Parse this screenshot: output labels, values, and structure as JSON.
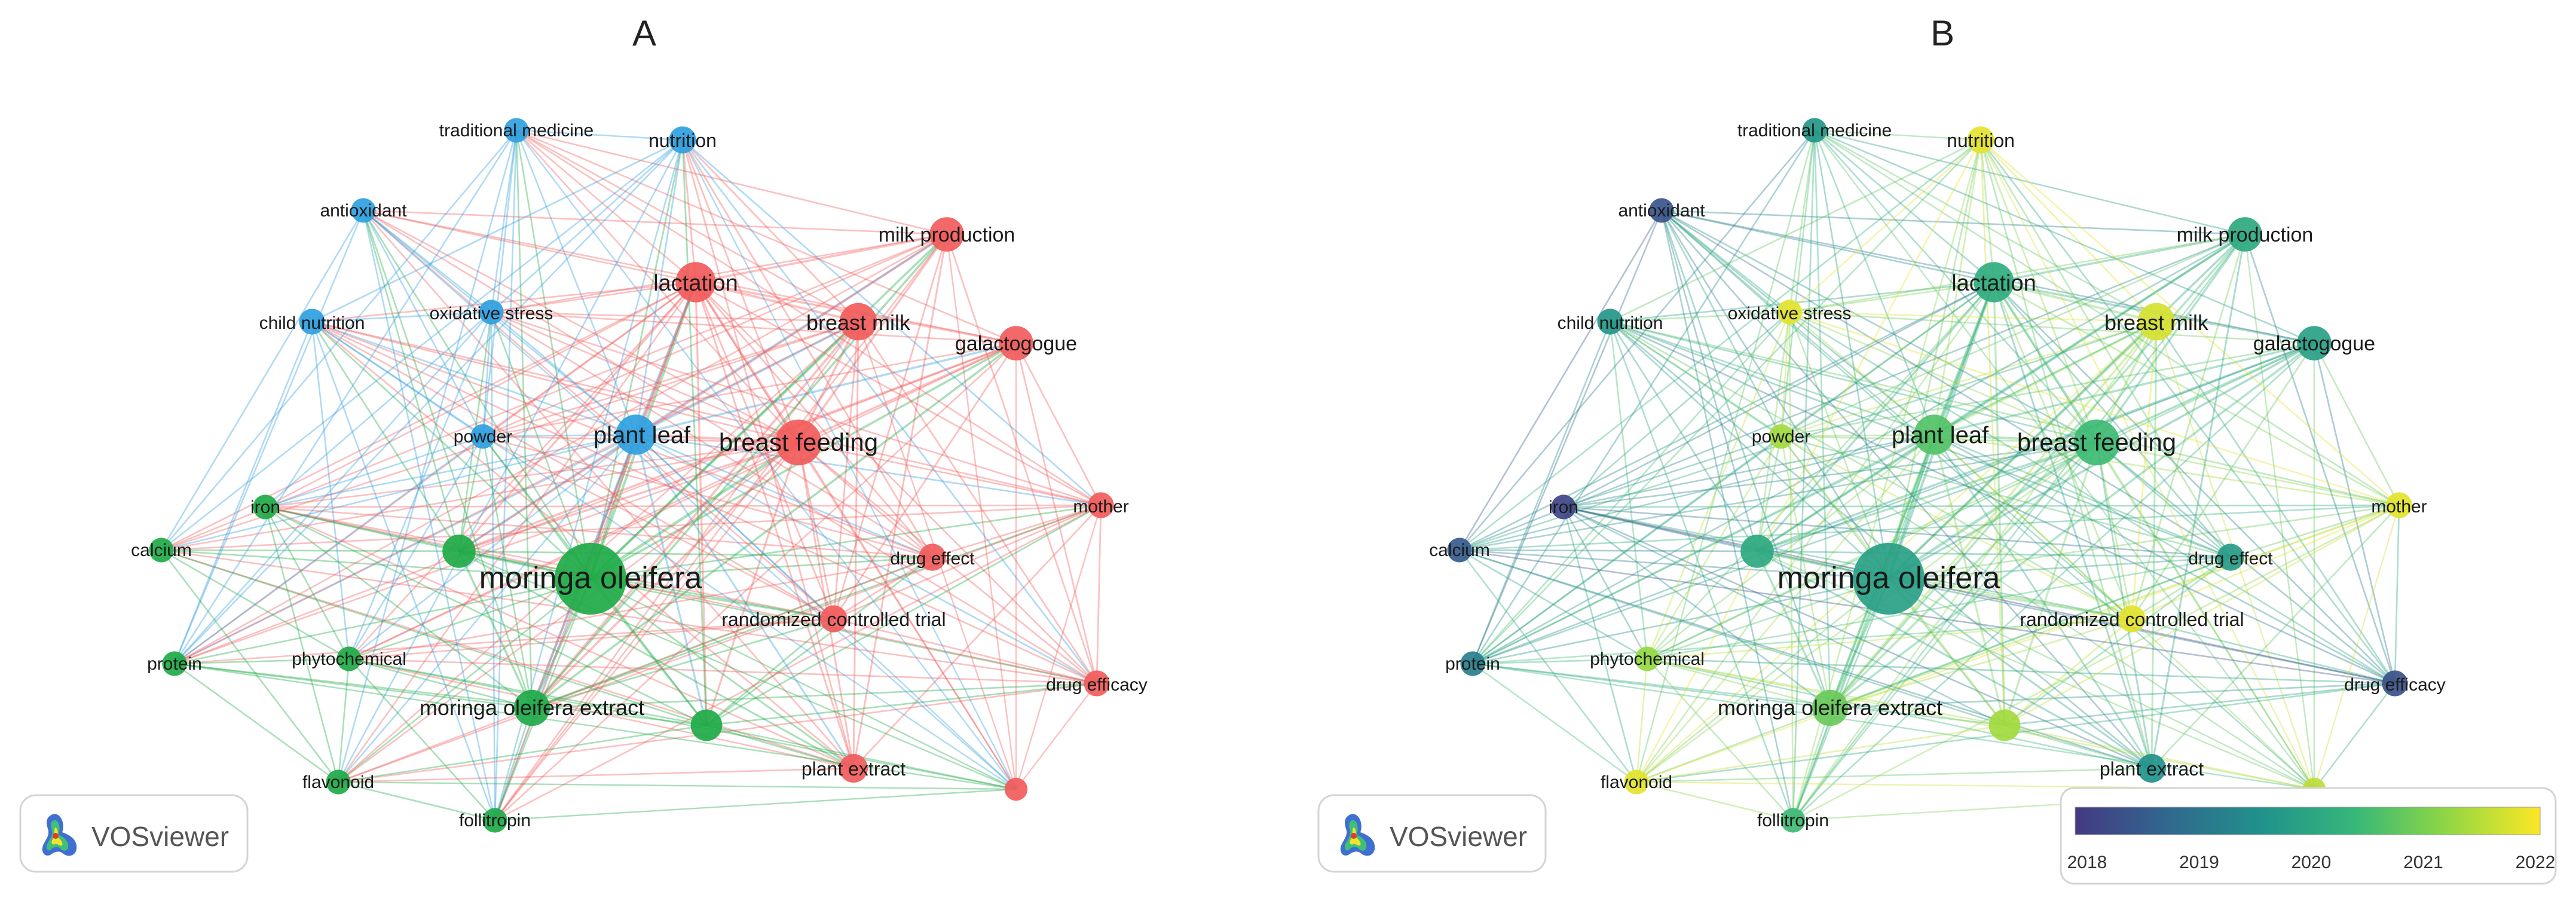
{
  "panels": [
    {
      "label": "A",
      "mode": "cluster",
      "logo_text": "VOSviewer"
    },
    {
      "label": "B",
      "mode": "overlay",
      "logo_text": "VOSviewer"
    }
  ],
  "clusters": {
    "red": "#f25b5b",
    "green": "#1faa48",
    "blue": "#2f9fe0"
  },
  "overlay_scale": {
    "ticks": [
      "2018",
      "2019",
      "2020",
      "2021",
      "2022"
    ],
    "colors": [
      "#443a83",
      "#31688e",
      "#21918c",
      "#35b779",
      "#90d743",
      "#fde725"
    ]
  },
  "nodes": [
    {
      "id": "moringa",
      "label": "moringa oleifera",
      "cluster": "green",
      "weight": 1.0,
      "year": 2020.0
    },
    {
      "id": "breastfeed",
      "label": "breast feeding",
      "cluster": "red",
      "weight": 0.55,
      "year": 2020.6
    },
    {
      "id": "plantleaf",
      "label": "plant leaf",
      "cluster": "blue",
      "weight": 0.45,
      "year": 2020.8
    },
    {
      "id": "lactation",
      "label": "lactation",
      "cluster": "red",
      "weight": 0.45,
      "year": 2020.3
    },
    {
      "id": "breastmilk",
      "label": "breast milk",
      "cluster": "red",
      "weight": 0.4,
      "year": 2021.9
    },
    {
      "id": "milkprod",
      "label": "milk production",
      "cluster": "red",
      "weight": 0.35,
      "year": 2020.2
    },
    {
      "id": "galacto",
      "label": "galactogogue",
      "cluster": "red",
      "weight": 0.35,
      "year": 2020.0
    },
    {
      "id": "extract",
      "label": "moringa oleifera extract",
      "cluster": "green",
      "weight": 0.38,
      "year": 2021.0
    },
    {
      "id": "rct",
      "label": "randomized controlled trial",
      "cluster": "red",
      "weight": 0.22,
      "year": 2022.0
    },
    {
      "id": "drugeffect",
      "label": "drug effect",
      "cluster": "red",
      "weight": 0.22,
      "year": 2019.9
    },
    {
      "id": "plantextract",
      "label": "plant extract",
      "cluster": "red",
      "weight": 0.25,
      "year": 2019.7
    },
    {
      "id": "drugefficacy",
      "label": "drug efficacy",
      "cluster": "red",
      "weight": 0.2,
      "year": 2018.4
    },
    {
      "id": "mother",
      "label": "mother",
      "cluster": "red",
      "weight": 0.2,
      "year": 2022.0
    },
    {
      "id": "nutrition",
      "label": "nutrition",
      "cluster": "blue",
      "weight": 0.22,
      "year": 2022.0
    },
    {
      "id": "tradmed",
      "label": "traditional medicine",
      "cluster": "blue",
      "weight": 0.18,
      "year": 2019.8
    },
    {
      "id": "antioxidant",
      "label": "antioxidant",
      "cluster": "blue",
      "weight": 0.18,
      "year": 2018.5
    },
    {
      "id": "childnut",
      "label": "child nutrition",
      "cluster": "blue",
      "weight": 0.2,
      "year": 2019.8
    },
    {
      "id": "oxstress",
      "label": "oxidative stress",
      "cluster": "blue",
      "weight": 0.18,
      "year": 2022.0
    },
    {
      "id": "powder",
      "label": "powder",
      "cluster": "blue",
      "weight": 0.18,
      "year": 2021.5
    },
    {
      "id": "iron",
      "label": "iron",
      "cluster": "green",
      "weight": 0.18,
      "year": 2018.2
    },
    {
      "id": "calcium",
      "label": "calcium",
      "cluster": "green",
      "weight": 0.18,
      "year": 2018.6
    },
    {
      "id": "protein",
      "label": "protein",
      "cluster": "green",
      "weight": 0.18,
      "year": 2019.3
    },
    {
      "id": "phyto",
      "label": "phytochemical",
      "cluster": "green",
      "weight": 0.18,
      "year": 2021.4
    },
    {
      "id": "flavonoid",
      "label": "flavonoid",
      "cluster": "green",
      "weight": 0.18,
      "year": 2022.0
    },
    {
      "id": "follitropin",
      "label": "follitropin",
      "cluster": "green",
      "weight": 0.18,
      "year": 2020.6
    },
    {
      "id": "g_unl1",
      "label": "",
      "cluster": "green",
      "weight": 0.33,
      "year": 2020.2
    },
    {
      "id": "g_unl2",
      "label": "",
      "cluster": "green",
      "weight": 0.3,
      "year": 2021.5
    },
    {
      "id": "r_unl",
      "label": "",
      "cluster": "red",
      "weight": 0.15,
      "year": 2021.7
    }
  ]
}
